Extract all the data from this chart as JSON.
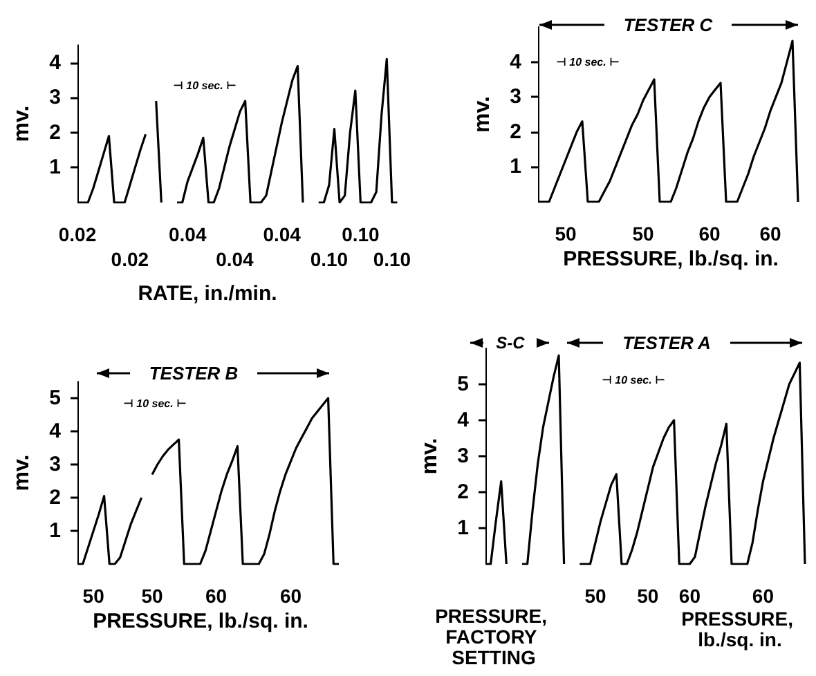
{
  "chart_data": [
    {
      "type": "line",
      "ylabel": "mv.",
      "xlabel": "RATE, in./min.",
      "annotations": [
        "⊣ 10 sec. ⊢"
      ],
      "marker": "none",
      "color": "#000000",
      "ylim": [
        0,
        4.5
      ],
      "yticks": [
        1,
        2,
        3,
        4
      ],
      "categories": [
        "0.02",
        null,
        null,
        null,
        null,
        null,
        null,
        null,
        null,
        null,
        "0.02",
        null,
        null,
        null,
        null,
        null,
        null,
        null,
        null,
        null,
        null,
        "0.04",
        null,
        null,
        null,
        null,
        null,
        null,
        null,
        null,
        "0.04",
        null,
        null,
        null,
        null,
        null,
        null,
        null,
        null,
        "0.04",
        null,
        null,
        null,
        null,
        null,
        null,
        null,
        null,
        "0.10",
        null,
        null,
        null,
        null,
        null,
        "0.10",
        null,
        null,
        null,
        null,
        null,
        "0.10",
        null
      ],
      "values": [
        0,
        0,
        0,
        0.4,
        0.9,
        1.4,
        1.9,
        0,
        0,
        0,
        0.5,
        1.0,
        1.5,
        1.95,
        null,
        2.9,
        0,
        null,
        null,
        0,
        0,
        0.6,
        1.0,
        1.4,
        1.85,
        0,
        0,
        0.4,
        1.0,
        1.6,
        2.1,
        2.6,
        2.9,
        0,
        0,
        0,
        0.2,
        0.9,
        1.6,
        2.3,
        2.9,
        3.5,
        3.9,
        0,
        null,
        null,
        0,
        0,
        0.5,
        2.1,
        0,
        0.2,
        2.0,
        3.2,
        0,
        0,
        0,
        0.3,
        2.5,
        4.1,
        0,
        0
      ]
    },
    {
      "type": "line",
      "title": "TESTER C",
      "ylabel": "mv.",
      "xlabel": "PRESSURE, lb./sq. in.",
      "annotations": [
        "⊣ 10 sec. ⊢"
      ],
      "marker": "none",
      "color": "#000000",
      "ylim": [
        0,
        5
      ],
      "yticks": [
        1,
        2,
        3,
        4
      ],
      "categories": [
        null,
        null,
        null,
        null,
        null,
        "50",
        null,
        null,
        null,
        null,
        null,
        null,
        null,
        null,
        null,
        null,
        null,
        null,
        null,
        "50",
        null,
        null,
        null,
        null,
        null,
        null,
        null,
        null,
        null,
        null,
        null,
        "60",
        null,
        null,
        null,
        null,
        null,
        null,
        null,
        null,
        null,
        null,
        "60",
        null,
        null,
        null,
        null,
        null
      ],
      "values": [
        0,
        0,
        0,
        0.4,
        0.8,
        1.2,
        1.6,
        2.0,
        2.3,
        0,
        0,
        0,
        0.3,
        0.6,
        1.0,
        1.4,
        1.8,
        2.2,
        2.5,
        2.9,
        3.2,
        3.5,
        0,
        0,
        0,
        0.4,
        0.9,
        1.4,
        1.8,
        2.3,
        2.7,
        3.0,
        3.2,
        3.4,
        0,
        0,
        0,
        0.4,
        0.8,
        1.3,
        1.7,
        2.1,
        2.6,
        3.0,
        3.4,
        4.0,
        4.6,
        0
      ]
    },
    {
      "type": "line",
      "title": "TESTER B",
      "ylabel": "mv.",
      "xlabel": "PRESSURE, lb./sq. in.",
      "annotations": [
        "⊣ 10 sec. ⊢"
      ],
      "marker": "none",
      "color": "#000000",
      "ylim": [
        0,
        5.5
      ],
      "yticks": [
        1,
        2,
        3,
        4,
        5
      ],
      "categories": [
        null,
        null,
        null,
        "50",
        null,
        null,
        null,
        null,
        null,
        null,
        null,
        null,
        null,
        null,
        "50",
        null,
        null,
        null,
        null,
        null,
        null,
        null,
        null,
        null,
        null,
        null,
        "60",
        null,
        null,
        null,
        null,
        null,
        null,
        null,
        null,
        null,
        null,
        null,
        null,
        null,
        "60",
        null,
        null,
        null,
        null,
        null,
        null,
        null,
        null,
        null
      ],
      "values": [
        0,
        0,
        0.5,
        1.0,
        1.5,
        2.05,
        0,
        0,
        0.2,
        0.7,
        1.2,
        1.6,
        2.0,
        null,
        2.7,
        3.0,
        3.25,
        3.45,
        3.6,
        3.75,
        0,
        0,
        0,
        0,
        0.4,
        1.0,
        1.6,
        2.2,
        2.7,
        3.1,
        3.55,
        0,
        0,
        0,
        0,
        0.3,
        0.9,
        1.6,
        2.2,
        2.7,
        3.1,
        3.5,
        3.8,
        4.1,
        4.4,
        4.6,
        4.8,
        5.0,
        0,
        0
      ]
    },
    {
      "type": "line",
      "title": "TESTER A",
      "ylabel": "mv.",
      "xlabel": "PRESSURE, lb./sq. in.",
      "annotations": [
        "S-C",
        "⊣ 10 sec. ⊢",
        "PRESSURE, FACTORY SETTING"
      ],
      "marker": "none",
      "color": "#000000",
      "ylim": [
        0,
        6
      ],
      "yticks": [
        1,
        2,
        3,
        4,
        5
      ],
      "categories": [
        null,
        null,
        null,
        null,
        null,
        null,
        null,
        null,
        null,
        null,
        null,
        null,
        null,
        null,
        null,
        null,
        null,
        null,
        null,
        null,
        null,
        "50",
        null,
        null,
        null,
        null,
        null,
        null,
        null,
        null,
        null,
        "50",
        null,
        null,
        null,
        null,
        null,
        null,
        null,
        "60",
        null,
        null,
        null,
        null,
        null,
        null,
        null,
        null,
        null,
        null,
        null,
        null,
        null,
        "60",
        null,
        null,
        null,
        null,
        null,
        null,
        null,
        null
      ],
      "values": [
        0,
        0,
        1.2,
        2.3,
        0,
        null,
        null,
        0,
        0,
        1.5,
        2.8,
        3.8,
        4.5,
        5.2,
        5.8,
        0,
        null,
        null,
        0,
        0,
        0,
        0.6,
        1.2,
        1.7,
        2.2,
        2.5,
        0,
        0,
        0.4,
        0.9,
        1.5,
        2.1,
        2.7,
        3.1,
        3.5,
        3.8,
        4.0,
        0,
        0,
        0,
        0.2,
        0.9,
        1.6,
        2.2,
        2.8,
        3.3,
        3.9,
        0,
        0,
        0,
        0,
        0.6,
        1.5,
        2.3,
        2.9,
        3.5,
        4.0,
        4.5,
        5.0,
        5.3,
        5.6,
        0
      ]
    }
  ]
}
